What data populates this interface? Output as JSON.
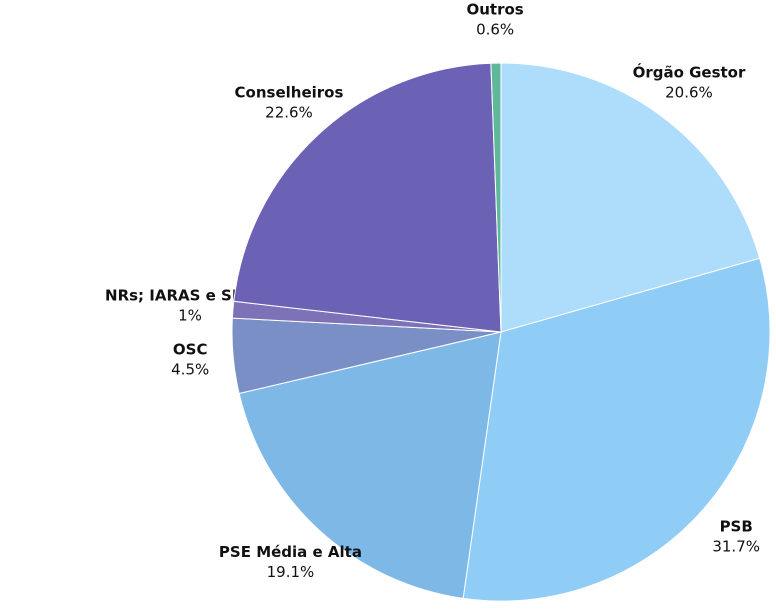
{
  "chart_data": {
    "type": "pie",
    "categories": [
      "Órgão Gestor",
      "PSB",
      "PSE Média e Alta",
      "OSC",
      "NRs; IARAS e SEDEF",
      "Conselheiros",
      "Outros"
    ],
    "values": [
      20.6,
      31.7,
      19.1,
      4.5,
      1,
      22.6,
      0.6
    ],
    "value_labels": [
      "20.6%",
      "31.7%",
      "19.1%",
      "4.5%",
      "1%",
      "22.6%",
      "0.6%"
    ],
    "colors": [
      "#aedcfb",
      "#90cdf6",
      "#7db8e6",
      "#7a8fc6",
      "#7d72b8",
      "#6b62b6",
      "#5fb89a"
    ]
  }
}
